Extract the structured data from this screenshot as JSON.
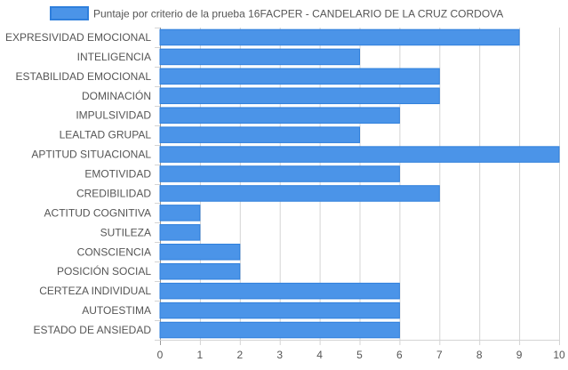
{
  "chart_data": {
    "type": "bar",
    "orientation": "horizontal",
    "categories": [
      "EXPRESIVIDAD EMOCIONAL",
      "INTELIGENCIA",
      "ESTABILIDAD EMOCIONAL",
      "DOMINACIÓN",
      "IMPULSIVIDAD",
      "LEALTAD GRUPAL",
      "APTITUD SITUACIONAL",
      "EMOTIVIDAD",
      "CREDIBILIDAD",
      "ACTITUD COGNITIVA",
      "SUTILEZA",
      "CONSCIENCIA",
      "POSICIÓN SOCIAL",
      "CERTEZA INDIVIDUAL",
      "AUTOESTIMA",
      "ESTADO DE ANSIEDAD"
    ],
    "series": [
      {
        "name": "Puntaje por criterio de la prueba 16FACPER - CANDELARIO DE LA CRUZ CORDOVA",
        "values": [
          9,
          5,
          7,
          7,
          6,
          5,
          10,
          6,
          7,
          1,
          1,
          2,
          2,
          6,
          6,
          6
        ],
        "color": "#4b94e8",
        "border_color": "#2f7fdc"
      }
    ],
    "xlim": [
      0,
      10
    ],
    "xticks": [
      0,
      1,
      2,
      3,
      4,
      5,
      6,
      7,
      8,
      9,
      10
    ],
    "grid": true,
    "legend_position": "top"
  }
}
